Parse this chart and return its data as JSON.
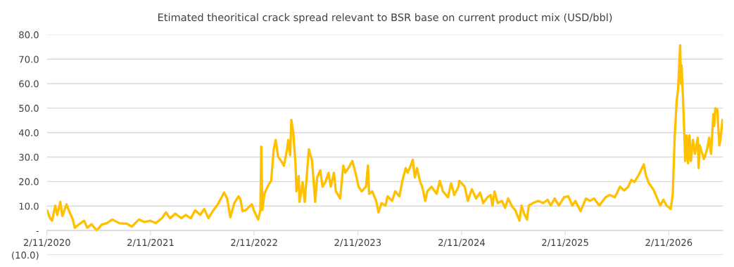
{
  "chart_data": {
    "type": "line",
    "title": "Etimated theoritical crack spread relevant to BSR base on current product mix (USD/bbl)",
    "x": [
      "2020-11-02",
      "2020-11-13",
      "2020-11-20",
      "2020-12-01",
      "2020-12-08",
      "2020-12-19",
      "2020-12-26",
      "2021-01-10",
      "2021-01-21",
      "2021-02-01",
      "2021-02-08",
      "2021-02-23",
      "2021-03-13",
      "2021-03-24",
      "2021-04-08",
      "2021-04-26",
      "2021-05-14",
      "2021-06-01",
      "2021-06-20",
      "2021-07-15",
      "2021-08-10",
      "2021-08-28",
      "2021-09-22",
      "2021-10-11",
      "2021-11-02",
      "2021-11-20",
      "2021-12-12",
      "2021-12-26",
      "2022-01-10",
      "2022-01-28",
      "2022-02-19",
      "2022-03-06",
      "2022-03-24",
      "2022-04-08",
      "2022-04-26",
      "2022-05-10",
      "2022-05-25",
      "2022-06-09",
      "2022-06-27",
      "2022-07-19",
      "2022-07-30",
      "2022-08-10",
      "2022-08-24",
      "2022-09-08",
      "2022-09-15",
      "2022-09-22",
      "2022-10-03",
      "2022-10-25",
      "2022-11-02",
      "2022-11-16",
      "2022-11-24",
      "2022-11-27",
      "2022-12-01",
      "2022-12-08",
      "2022-12-23",
      "2023-01-01",
      "2023-01-10",
      "2023-01-17",
      "2023-01-25",
      "2023-02-05",
      "2023-02-15",
      "2023-02-26",
      "2023-03-02",
      "2023-03-09",
      "2023-03-13",
      "2023-03-20",
      "2023-03-28",
      "2023-03-31",
      "2023-04-08",
      "2023-04-11",
      "2023-04-22",
      "2023-04-29",
      "2023-05-10",
      "2023-05-14",
      "2023-05-25",
      "2023-06-01",
      "2023-06-05",
      "2023-06-12",
      "2023-06-23",
      "2023-07-01",
      "2023-07-11",
      "2023-07-22",
      "2023-07-30",
      "2023-08-10",
      "2023-08-17",
      "2023-09-01",
      "2023-09-12",
      "2023-09-19",
      "2023-09-30",
      "2023-10-14",
      "2023-10-25",
      "2023-11-05",
      "2023-11-16",
      "2023-12-01",
      "2023-12-08",
      "2023-12-12",
      "2023-12-23",
      "2024-01-06",
      "2024-01-14",
      "2024-01-25",
      "2024-02-08",
      "2024-02-15",
      "2024-03-02",
      "2024-03-13",
      "2024-03-28",
      "2024-04-08",
      "2024-04-19",
      "2024-04-26",
      "2024-05-03",
      "2024-05-14",
      "2024-05-21",
      "2024-05-29",
      "2024-06-09",
      "2024-06-16",
      "2024-06-27",
      "2024-07-04",
      "2024-07-19",
      "2024-08-06",
      "2024-08-17",
      "2024-08-28",
      "2024-09-15",
      "2024-09-26",
      "2024-10-07",
      "2024-10-22",
      "2024-10-25",
      "2024-11-13",
      "2024-11-24",
      "2024-12-08",
      "2024-12-23",
      "2025-01-06",
      "2025-01-17",
      "2025-02-01",
      "2025-02-12",
      "2025-02-19",
      "2025-02-26",
      "2025-03-09",
      "2025-03-24",
      "2025-04-04",
      "2025-04-15",
      "2025-04-29",
      "2025-05-10",
      "2025-05-25",
      "2025-06-01",
      "2025-06-12",
      "2025-06-20",
      "2025-06-27",
      "2025-07-11",
      "2025-07-30",
      "2025-08-17",
      "2025-09-01",
      "2025-09-12",
      "2025-09-26",
      "2025-10-11",
      "2025-10-29",
      "2025-11-13",
      "2025-11-27",
      "2025-12-08",
      "2025-12-26",
      "2026-01-14",
      "2026-01-28",
      "2026-02-12",
      "2026-03-02",
      "2026-03-24",
      "2026-04-08",
      "2026-04-26",
      "2026-05-14",
      "2026-05-29",
      "2026-06-12",
      "2026-06-23",
      "2026-07-04",
      "2026-07-19",
      "2026-08-06",
      "2026-08-13",
      "2026-08-24",
      "2026-09-08",
      "2026-09-19",
      "2026-10-03",
      "2026-10-14",
      "2026-10-25",
      "2026-11-09",
      "2026-11-16",
      "2026-11-23",
      "2026-11-30",
      "2026-12-05",
      "2026-12-12",
      "2026-12-15",
      "2026-12-17",
      "2026-12-22",
      "2026-12-25",
      "2026-12-30",
      "2027-01-04",
      "2027-01-09",
      "2027-01-14",
      "2027-01-19",
      "2027-01-26",
      "2027-02-02",
      "2027-02-12",
      "2027-02-15",
      "2027-02-19",
      "2027-02-26",
      "2027-03-06",
      "2027-03-17",
      "2027-03-24",
      "2027-03-31",
      "2027-04-08",
      "2027-04-11",
      "2027-04-15",
      "2027-04-22",
      "2027-04-29",
      "2027-05-03",
      "2027-05-10"
    ],
    "series": [
      {
        "color": "#ffc000",
        "values": [
          8.3,
          5,
          4,
          10.2,
          6.4,
          11.7,
          5.9,
          10.7,
          7.4,
          4.5,
          1.1,
          2.6,
          4,
          1.1,
          2.6,
          0,
          2.4,
          3,
          4.5,
          3,
          2.8,
          1.6,
          4.5,
          3.5,
          4,
          3,
          5,
          7.4,
          5,
          6.9,
          5,
          6.4,
          5,
          8.3,
          6.4,
          8.8,
          5,
          7.9,
          10.7,
          15.5,
          13.1,
          5.4,
          11.2,
          14,
          12.6,
          7.9,
          8.3,
          10.7,
          7.9,
          4.5,
          8.3,
          34.3,
          8.3,
          15,
          18.8,
          20.3,
          33.2,
          37,
          30.3,
          28.4,
          26.5,
          33.2,
          37,
          30.8,
          45.2,
          39.9,
          26.5,
          16,
          22.2,
          11.7,
          19.8,
          11.7,
          27.5,
          33.2,
          28.4,
          17.9,
          11.7,
          21.7,
          24.6,
          17.9,
          19.8,
          23.6,
          17.9,
          23.6,
          16,
          13.1,
          26.5,
          23.6,
          25.5,
          28.4,
          23.6,
          17.9,
          16,
          17.9,
          26.5,
          15,
          16,
          12.1,
          7.4,
          11.2,
          10.2,
          14,
          12.1,
          16,
          14,
          20.7,
          25.5,
          23.6,
          25.5,
          28.9,
          21.7,
          25.5,
          19.8,
          17.9,
          12.1,
          16,
          17.9,
          15,
          20.3,
          16,
          13.6,
          19.3,
          14.5,
          17.9,
          20.3,
          17.9,
          12.1,
          16.9,
          13.1,
          15.5,
          11.2,
          13.6,
          14.5,
          10.2,
          16,
          11.2,
          12.1,
          9.3,
          13.1,
          9.8,
          8.3,
          4,
          10.2,
          6.4,
          4.5,
          10.2,
          11.2,
          12.1,
          11.2,
          12.6,
          10.2,
          13.1,
          10.2,
          13.6,
          14,
          10.2,
          12.1,
          7.9,
          13.1,
          12.1,
          13.1,
          10.2,
          13.6,
          14.5,
          13.6,
          17.9,
          16.4,
          17.9,
          20.7,
          19.8,
          22.7,
          27,
          22.7,
          19.3,
          16.9,
          14,
          10.2,
          12.6,
          10.2,
          8.8,
          15,
          38.9,
          53.2,
          58,
          75.7,
          60,
          67.6,
          54.2,
          44.6,
          28.4,
          38.9,
          27.5,
          38.9,
          28.4,
          37,
          31.3,
          37.9,
          25.5,
          34.8,
          32,
          29.2,
          33.2,
          37.9,
          31.3,
          47.5,
          42.7,
          49.9,
          49.4,
          34.8,
          37,
          45.2
        ]
      }
    ],
    "xlim": [
      "2020-11-02",
      "2027-05-12"
    ],
    "xticks": [
      {
        "value": "2020-11-02",
        "label": "2/11/2020"
      },
      {
        "value": "2021-11-02",
        "label": "2/11/2021"
      },
      {
        "value": "2022-11-02",
        "label": "2/11/2022"
      },
      {
        "value": "2023-11-02",
        "label": "2/11/2023"
      },
      {
        "value": "2024-11-02",
        "label": "2/11/2024"
      },
      {
        "value": "2025-11-02",
        "label": "2/11/2025"
      },
      {
        "value": "2026-11-02",
        "label": "2/11/2026"
      }
    ],
    "ylim": [
      -10,
      80
    ],
    "yticks": [
      {
        "value": -10,
        "label": "(10.0)"
      },
      {
        "value": 0,
        "label": "-"
      },
      {
        "value": 10,
        "label": "10.0"
      },
      {
        "value": 20,
        "label": "20.0"
      },
      {
        "value": 30,
        "label": "30.0"
      },
      {
        "value": 40,
        "label": "40.0"
      },
      {
        "value": 50,
        "label": "50.0"
      },
      {
        "value": 60,
        "label": "60.0"
      },
      {
        "value": 70,
        "label": "70.0"
      },
      {
        "value": 80,
        "label": "80.0"
      }
    ],
    "grid": "y"
  }
}
